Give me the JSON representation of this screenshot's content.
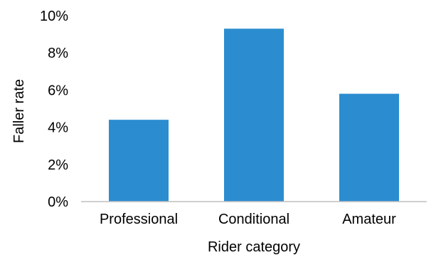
{
  "chart_data": {
    "type": "bar",
    "title": "",
    "xlabel": "Rider category",
    "ylabel": "Faller rate",
    "categories": [
      "Professional",
      "Conditional",
      "Amateur"
    ],
    "values": [
      4.4,
      9.3,
      5.8
    ],
    "value_unit": "%",
    "ylim": [
      0,
      10
    ],
    "yticks": [
      0,
      2,
      4,
      6,
      8,
      10
    ],
    "ytick_labels": [
      "0%",
      "2%",
      "4%",
      "6%",
      "8%",
      "10%"
    ],
    "grid": false,
    "legend": "none",
    "bar_color": "#2B8DCF",
    "axis_color": "#BFBFBF"
  }
}
